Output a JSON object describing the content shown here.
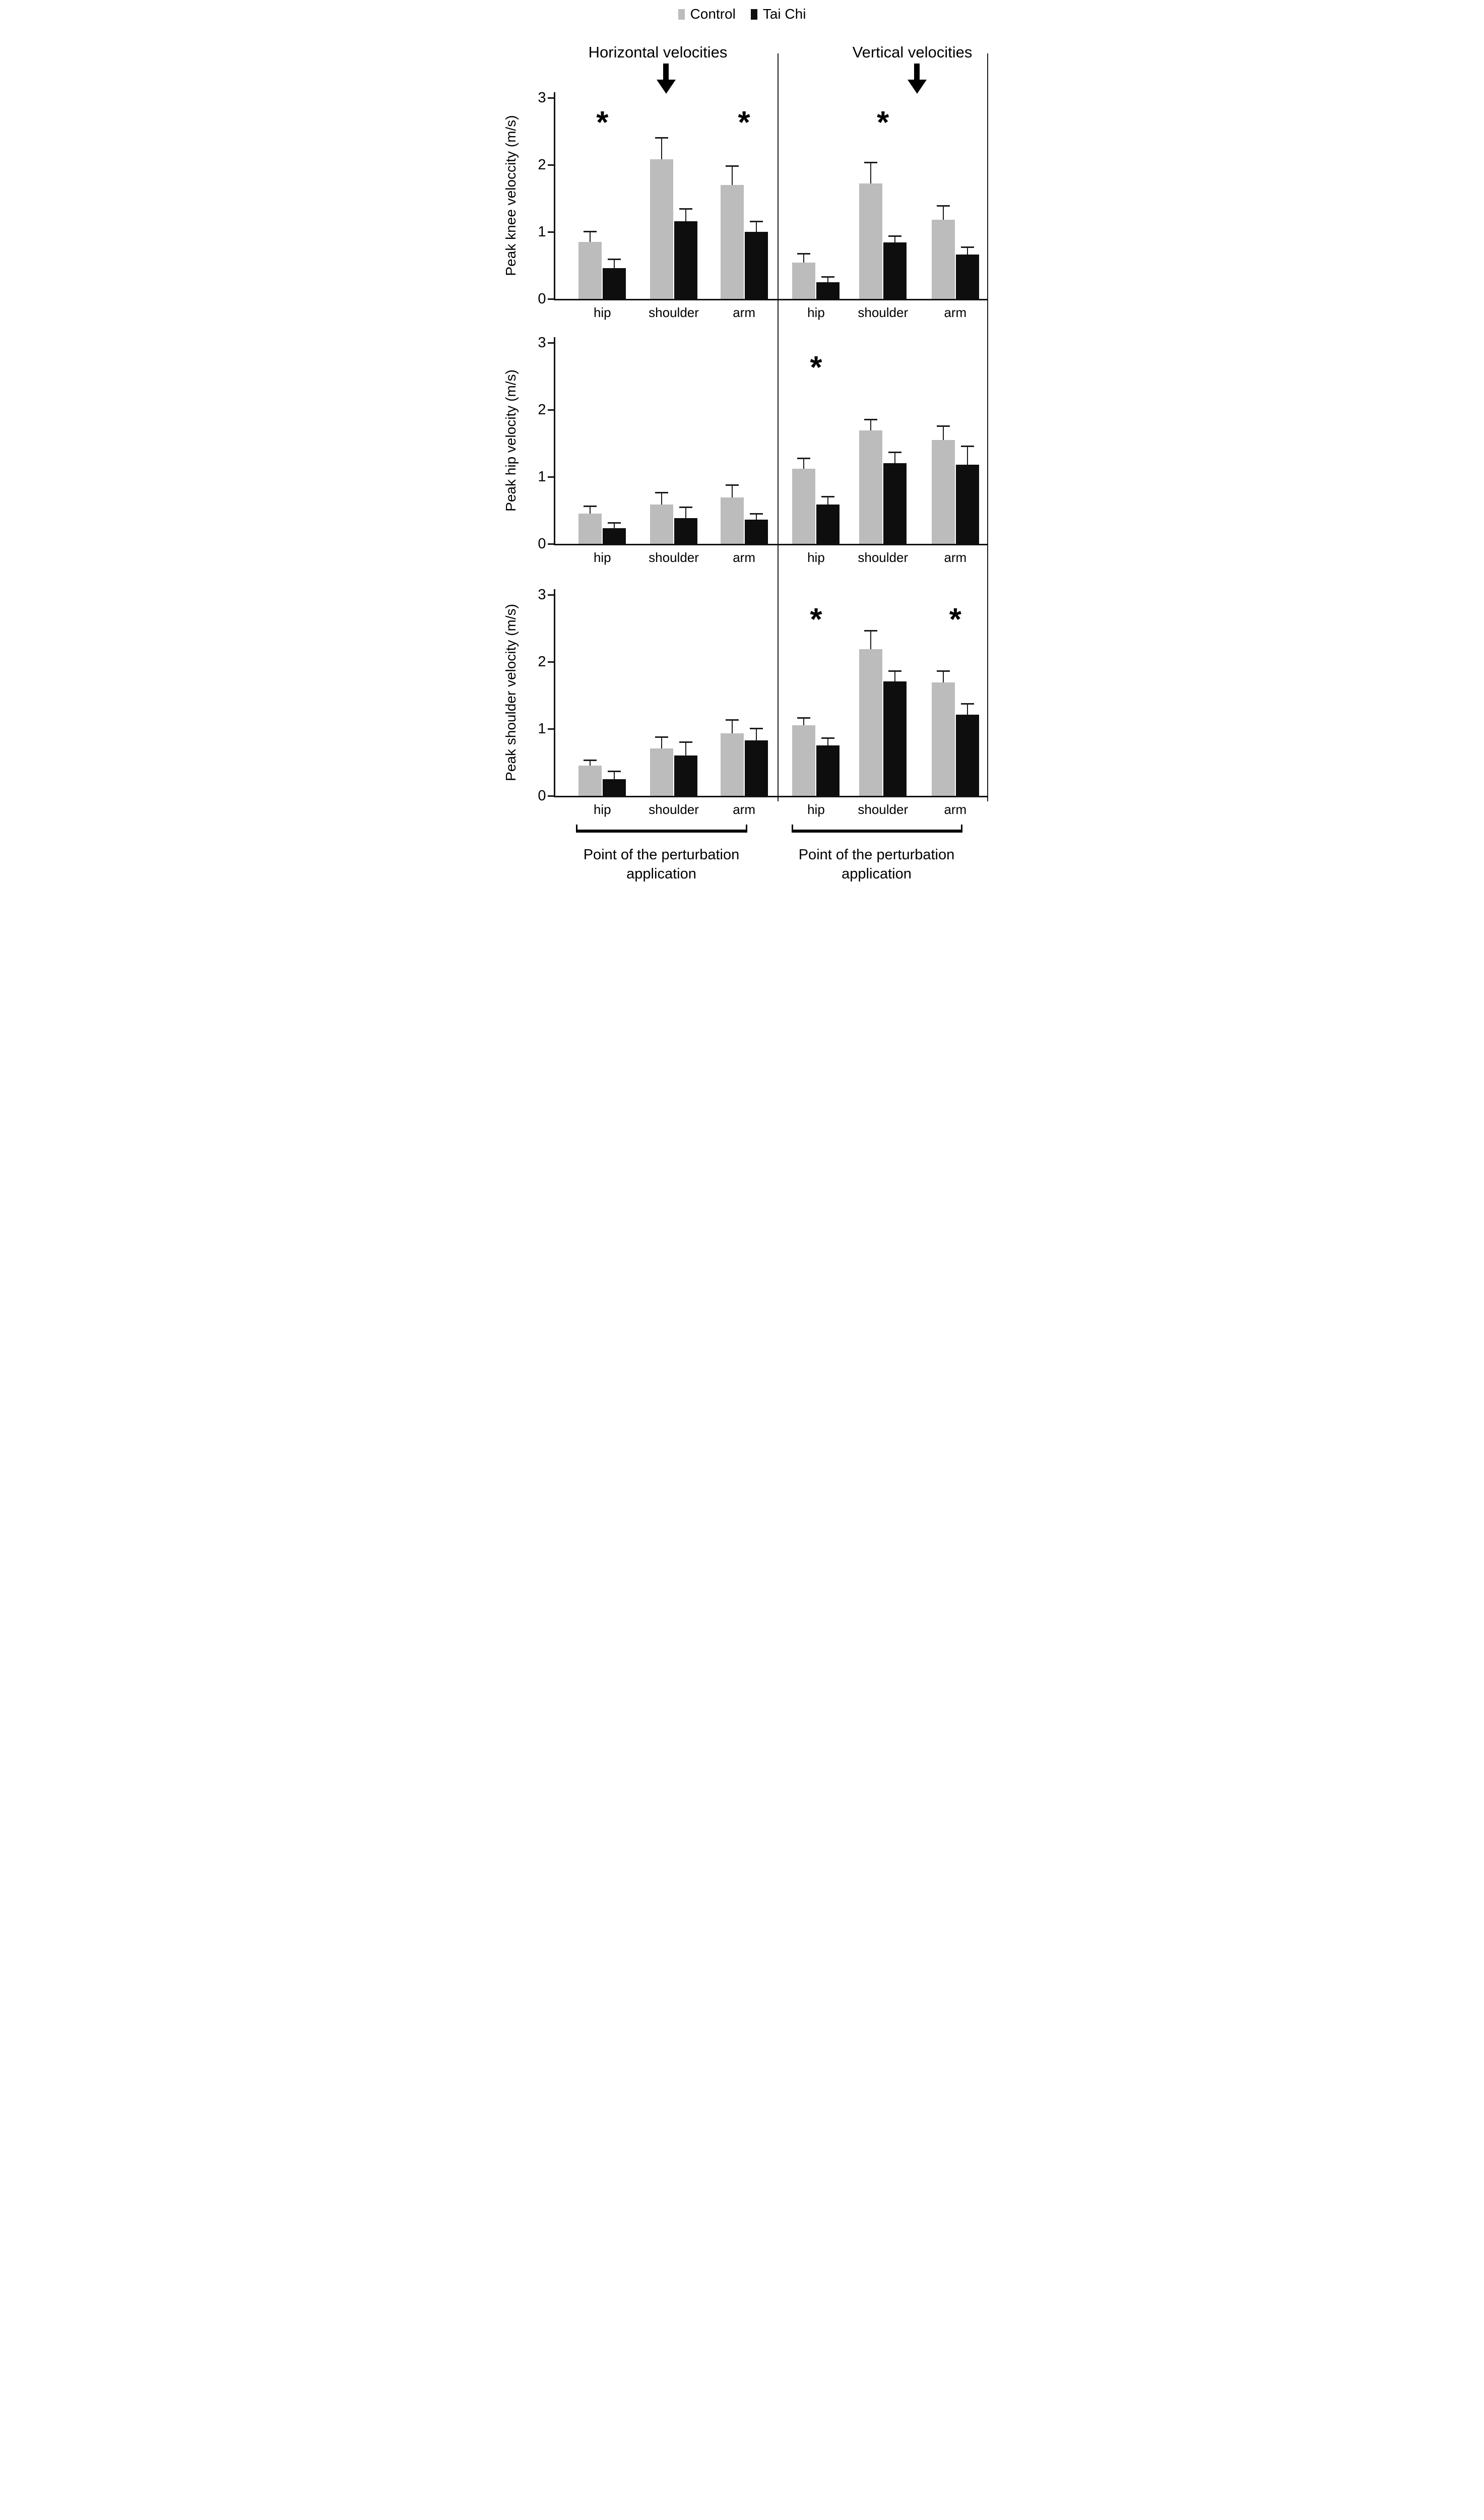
{
  "figure": {
    "legend": {
      "items": [
        {
          "label": "Control",
          "color": "#bcbcbc"
        },
        {
          "label": "Tai Chi",
          "color": "#0e0e0e"
        }
      ]
    },
    "columns": [
      {
        "title": "Horizontal velocities",
        "arrow_icon": "down-arrow",
        "arrow_over": "shoulder"
      },
      {
        "title": "Vertical velocities",
        "arrow_icon": "down-arrow",
        "arrow_over": "shoulder"
      }
    ],
    "rows": [
      {
        "ylabel": "Peak knee veloccity (m/s)"
      },
      {
        "ylabel": "Peak hip velocity (m/s)"
      },
      {
        "ylabel": "Peak shoulder velocity (m/s)"
      }
    ],
    "x_categories": [
      "hip",
      "shoulder",
      "arm"
    ],
    "y_ticks": [
      "0",
      "1",
      "2",
      "3"
    ],
    "footers": [
      {
        "line1": "Point of the perturbation",
        "line2": "application"
      },
      {
        "line1": "Point of the perturbation",
        "line2": "application"
      }
    ]
  },
  "chart_data": [
    {
      "type": "bar",
      "row": 0,
      "col": 0,
      "title": "Peak knee velocity - horizontal",
      "categories": [
        "hip",
        "shoulder",
        "arm"
      ],
      "series": [
        {
          "name": "Control",
          "values": [
            0.85,
            2.08,
            1.7
          ],
          "errors_upper": [
            1.0,
            2.4,
            1.98
          ]
        },
        {
          "name": "Tai Chi",
          "values": [
            0.46,
            1.16,
            1.0
          ],
          "errors_upper": [
            0.59,
            1.34,
            1.15
          ]
        }
      ],
      "significance": [
        "hip",
        "arm"
      ],
      "ylim": [
        0,
        3
      ],
      "units": "m/s"
    },
    {
      "type": "bar",
      "row": 0,
      "col": 1,
      "title": "Peak knee velocity - vertical",
      "categories": [
        "hip",
        "shoulder",
        "arm"
      ],
      "series": [
        {
          "name": "Control",
          "values": [
            0.54,
            1.72,
            1.18
          ],
          "errors_upper": [
            0.67,
            2.03,
            1.38
          ]
        },
        {
          "name": "Tai Chi",
          "values": [
            0.25,
            0.84,
            0.66
          ],
          "errors_upper": [
            0.32,
            0.93,
            0.77
          ]
        }
      ],
      "significance": [
        "shoulder"
      ],
      "ylim": [
        0,
        3
      ],
      "units": "m/s"
    },
    {
      "type": "bar",
      "row": 1,
      "col": 0,
      "title": "Peak hip velocity - horizontal",
      "categories": [
        "hip",
        "shoulder",
        "arm"
      ],
      "series": [
        {
          "name": "Control",
          "values": [
            0.45,
            0.59,
            0.69
          ],
          "errors_upper": [
            0.56,
            0.76,
            0.87
          ]
        },
        {
          "name": "Tai Chi",
          "values": [
            0.23,
            0.38,
            0.36
          ],
          "errors_upper": [
            0.31,
            0.54,
            0.44
          ]
        }
      ],
      "significance": [],
      "ylim": [
        0,
        3
      ],
      "units": "m/s"
    },
    {
      "type": "bar",
      "row": 1,
      "col": 1,
      "title": "Peak hip velocity - vertical",
      "categories": [
        "hip",
        "shoulder",
        "arm"
      ],
      "series": [
        {
          "name": "Control",
          "values": [
            1.12,
            1.69,
            1.55
          ],
          "errors_upper": [
            1.27,
            1.85,
            1.75
          ]
        },
        {
          "name": "Tai Chi",
          "values": [
            0.59,
            1.2,
            1.18
          ],
          "errors_upper": [
            0.7,
            1.36,
            1.45
          ]
        }
      ],
      "significance": [
        "hip"
      ],
      "ylim": [
        0,
        3
      ],
      "units": "m/s"
    },
    {
      "type": "bar",
      "row": 2,
      "col": 0,
      "title": "Peak shoulder velocity - horizontal",
      "categories": [
        "hip",
        "shoulder",
        "arm"
      ],
      "series": [
        {
          "name": "Control",
          "values": [
            0.45,
            0.71,
            0.93
          ],
          "errors_upper": [
            0.53,
            0.87,
            1.13
          ]
        },
        {
          "name": "Tai Chi",
          "values": [
            0.25,
            0.6,
            0.83
          ],
          "errors_upper": [
            0.36,
            0.8,
            1.0
          ]
        }
      ],
      "significance": [],
      "ylim": [
        0,
        3
      ],
      "units": "m/s"
    },
    {
      "type": "bar",
      "row": 2,
      "col": 1,
      "title": "Peak shoulder velocity - vertical",
      "categories": [
        "hip",
        "shoulder",
        "arm"
      ],
      "series": [
        {
          "name": "Control",
          "values": [
            1.05,
            2.19,
            1.69
          ],
          "errors_upper": [
            1.16,
            2.46,
            1.86
          ]
        },
        {
          "name": "Tai Chi",
          "values": [
            0.75,
            1.71,
            1.21
          ],
          "errors_upper": [
            0.86,
            1.86,
            1.37
          ]
        }
      ],
      "significance": [
        "hip",
        "arm"
      ],
      "ylim": [
        0,
        3
      ],
      "units": "m/s"
    }
  ]
}
